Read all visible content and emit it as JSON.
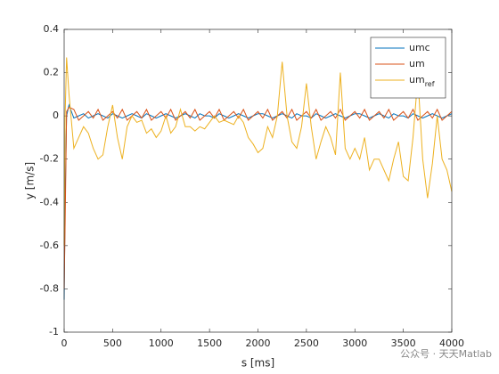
{
  "chart_data": {
    "type": "line",
    "xlabel": "s [ms]",
    "ylabel": "y [m/s]",
    "x": [
      0,
      10,
      25,
      50,
      100,
      150,
      200,
      250,
      300,
      350,
      400,
      450,
      500,
      550,
      600,
      650,
      700,
      750,
      800,
      850,
      900,
      950,
      1000,
      1050,
      1100,
      1150,
      1200,
      1250,
      1300,
      1350,
      1400,
      1450,
      1500,
      1550,
      1600,
      1650,
      1700,
      1750,
      1800,
      1850,
      1900,
      1950,
      2000,
      2050,
      2100,
      2150,
      2200,
      2250,
      2300,
      2350,
      2400,
      2450,
      2500,
      2550,
      2600,
      2650,
      2700,
      2750,
      2800,
      2850,
      2900,
      2950,
      3000,
      3050,
      3100,
      3150,
      3200,
      3250,
      3300,
      3350,
      3400,
      3450,
      3500,
      3550,
      3600,
      3650,
      3700,
      3750,
      3800,
      3850,
      3900,
      3950,
      4000
    ],
    "series": [
      {
        "name": "umc",
        "color": "#0072bd",
        "values": [
          -0.85,
          -0.4,
          0.0,
          0.05,
          -0.01,
          0.0,
          0.01,
          -0.01,
          0.0,
          0.01,
          0.0,
          -0.01,
          0.01,
          0.0,
          -0.01,
          0.0,
          0.01,
          0.0,
          -0.01,
          0.01,
          0.0,
          -0.01,
          0.0,
          0.01,
          0.0,
          -0.01,
          0.0,
          0.01,
          0.0,
          -0.01,
          0.01,
          0.0,
          0.0,
          -0.01,
          0.01,
          0.0,
          -0.01,
          0.0,
          0.01,
          0.0,
          -0.01,
          0.0,
          0.01,
          0.01,
          0.0,
          -0.01,
          0.0,
          0.01,
          0.0,
          -0.01,
          0.01,
          0.0,
          0.0,
          -0.01,
          0.01,
          0.0,
          -0.01,
          0.0,
          0.01,
          0.0,
          -0.01,
          0.0,
          0.01,
          0.01,
          0.0,
          -0.01,
          0.0,
          0.01,
          0.0,
          -0.01,
          0.01,
          0.0,
          0.0,
          -0.01,
          0.01,
          0.0,
          -0.01,
          0.0,
          0.01,
          0.0,
          -0.01,
          0.0,
          0.01
        ]
      },
      {
        "name": "um",
        "color": "#d95319",
        "values": [
          -0.8,
          -0.5,
          0.02,
          0.04,
          0.03,
          -0.02,
          0.0,
          0.02,
          -0.01,
          0.03,
          -0.02,
          0.0,
          0.02,
          -0.01,
          0.03,
          -0.02,
          0.0,
          0.02,
          -0.01,
          0.03,
          -0.02,
          0.0,
          0.02,
          -0.01,
          0.03,
          -0.02,
          0.0,
          0.02,
          -0.01,
          0.03,
          -0.02,
          0.0,
          0.02,
          -0.01,
          0.03,
          -0.02,
          0.0,
          0.02,
          -0.01,
          0.03,
          -0.02,
          0.0,
          0.02,
          -0.01,
          0.03,
          -0.02,
          0.0,
          0.02,
          -0.01,
          0.03,
          -0.02,
          0.0,
          0.02,
          -0.01,
          0.03,
          -0.02,
          0.0,
          0.02,
          -0.01,
          0.03,
          -0.02,
          0.0,
          0.02,
          -0.01,
          0.03,
          -0.02,
          0.0,
          0.02,
          -0.01,
          0.03,
          -0.02,
          0.0,
          0.02,
          -0.01,
          0.03,
          -0.02,
          0.0,
          0.02,
          -0.01,
          0.03,
          -0.02,
          0.0,
          0.02
        ]
      },
      {
        "name": "um",
        "subscript": "ref",
        "color": "#edb120",
        "values": [
          -0.6,
          0.0,
          0.27,
          0.1,
          -0.15,
          -0.1,
          -0.05,
          -0.08,
          -0.15,
          -0.2,
          -0.18,
          -0.05,
          0.05,
          -0.1,
          -0.2,
          -0.05,
          0.0,
          -0.03,
          -0.02,
          -0.08,
          -0.06,
          -0.1,
          -0.07,
          0.0,
          -0.08,
          -0.05,
          0.03,
          -0.05,
          -0.05,
          -0.07,
          -0.05,
          -0.06,
          -0.03,
          0.0,
          -0.03,
          -0.02,
          -0.03,
          -0.04,
          0.0,
          -0.03,
          -0.1,
          -0.13,
          -0.17,
          -0.15,
          -0.05,
          -0.1,
          0.0,
          0.25,
          0.0,
          -0.12,
          -0.15,
          -0.05,
          0.15,
          -0.05,
          -0.2,
          -0.12,
          -0.05,
          -0.1,
          -0.18,
          0.2,
          -0.15,
          -0.2,
          -0.15,
          -0.2,
          -0.1,
          -0.25,
          -0.2,
          -0.2,
          -0.25,
          -0.3,
          -0.2,
          -0.12,
          -0.28,
          -0.3,
          -0.1,
          0.18,
          -0.2,
          -0.38,
          -0.22,
          0.0,
          -0.2,
          -0.25,
          -0.35
        ]
      }
    ],
    "xlim": [
      0,
      4000
    ],
    "xticks": [
      0,
      500,
      1000,
      1500,
      2000,
      2500,
      3000,
      3500,
      4000
    ],
    "ylim": [
      -1,
      0.4
    ],
    "yticks": [
      -1,
      -0.8,
      -0.6,
      -0.4,
      -0.2,
      0,
      0.2,
      0.4
    ],
    "legend": "upper right",
    "watermark": "公众号 · 天天Matlab"
  }
}
